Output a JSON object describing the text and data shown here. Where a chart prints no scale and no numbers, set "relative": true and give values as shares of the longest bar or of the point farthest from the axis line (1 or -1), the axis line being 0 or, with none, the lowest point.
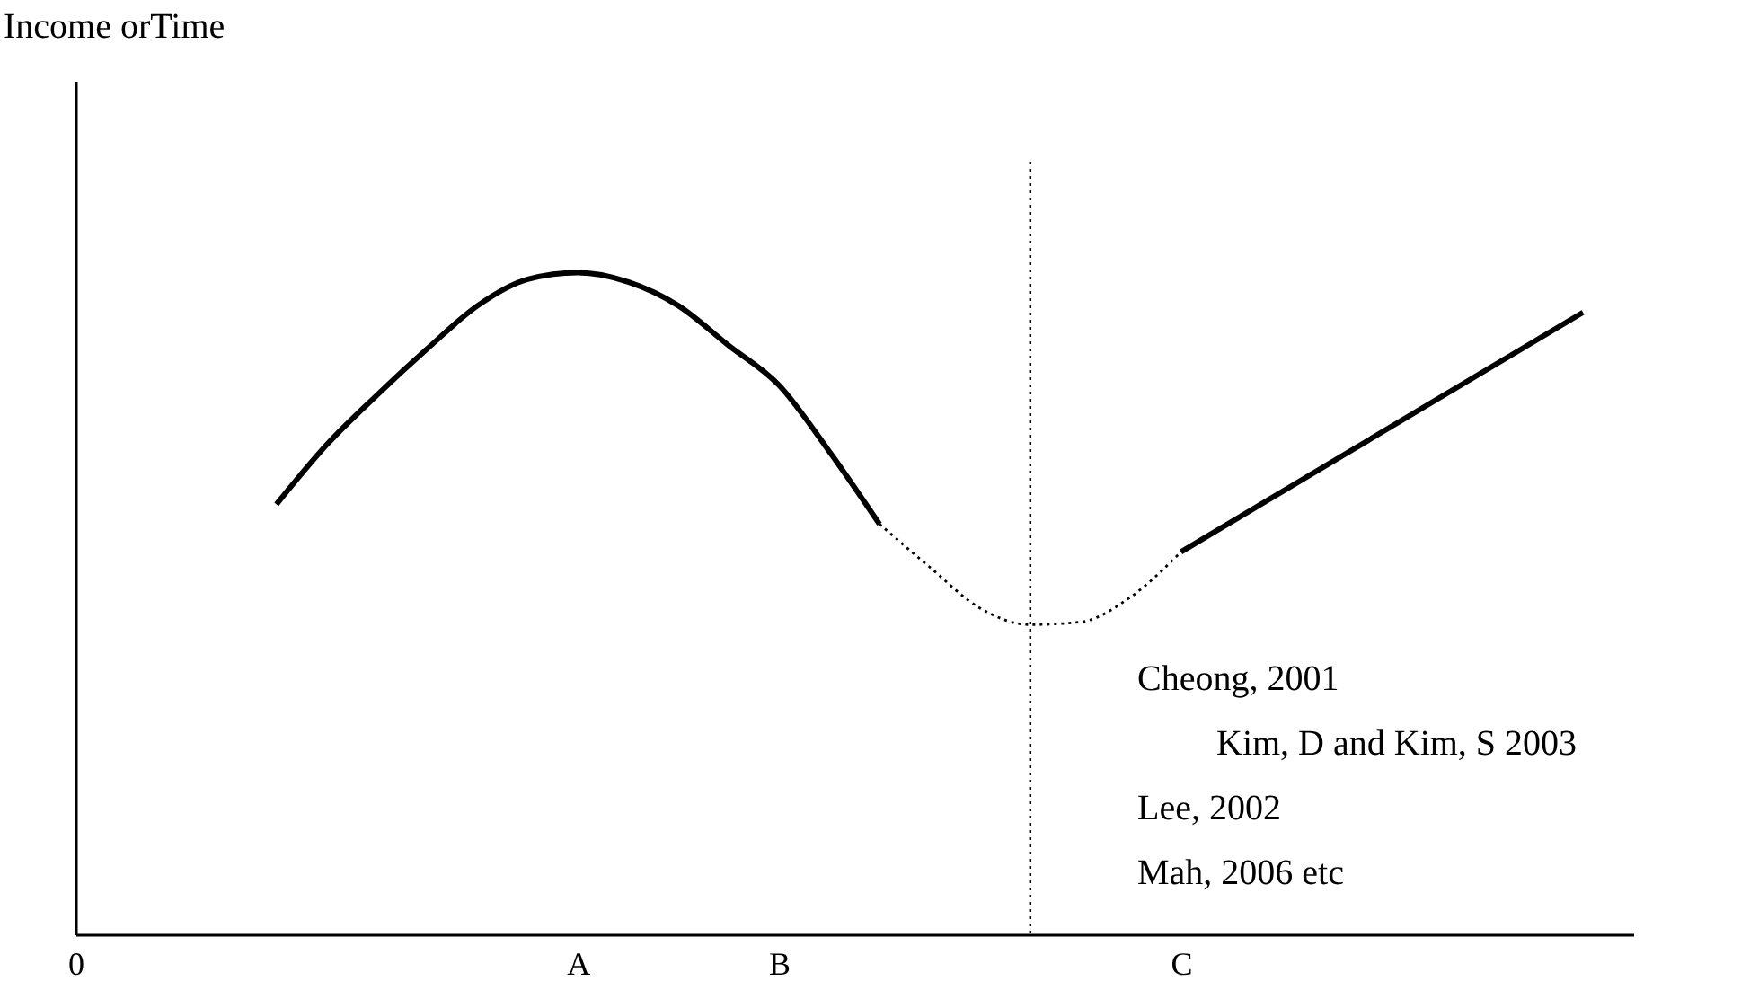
{
  "chart_data": {
    "type": "line",
    "relative": true,
    "categories": [
      "0",
      null,
      null,
      null,
      null,
      null,
      null,
      null,
      null,
      null,
      "A",
      null,
      null,
      null,
      "B",
      null,
      null,
      null,
      null,
      null,
      null,
      null,
      "C",
      null,
      null,
      null,
      null,
      null,
      null,
      null,
      null,
      null
    ],
    "series": [
      {
        "color": "#000000",
        "line_style": "solid",
        "values": [
          null,
          null,
          null,
          null,
          0.65,
          0.74,
          0.815,
          0.885,
          0.95,
          0.99,
          1,
          0.986,
          0.95,
          0.89,
          0.83,
          0.73,
          0.62,
          null,
          null,
          null,
          null,
          null,
          null,
          null,
          null,
          null,
          null,
          null,
          null,
          null,
          null,
          null
        ]
      },
      {
        "color": "#000000",
        "line_style": "dotted",
        "values": [
          null,
          null,
          null,
          null,
          null,
          null,
          null,
          null,
          null,
          null,
          null,
          null,
          null,
          null,
          null,
          null,
          0.62,
          0.555,
          0.493,
          0.468,
          0.472,
          0.51,
          0.578,
          null,
          null,
          null,
          null,
          null,
          null,
          null,
          null,
          null
        ]
      },
      {
        "color": "#000000",
        "line_style": "solid",
        "values": [
          null,
          null,
          null,
          null,
          null,
          null,
          null,
          null,
          null,
          null,
          null,
          null,
          null,
          null,
          null,
          null,
          null,
          null,
          null,
          null,
          null,
          null,
          0.578,
          null,
          null,
          null,
          null,
          null,
          null,
          null,
          0.94,
          null
        ]
      }
    ],
    "annotations": [
      "Income orTime",
      "Cheong, 2001",
      "Kim, D and Kim, S 2003",
      "Lee, 2002",
      "Mah, 2006 etc"
    ]
  }
}
